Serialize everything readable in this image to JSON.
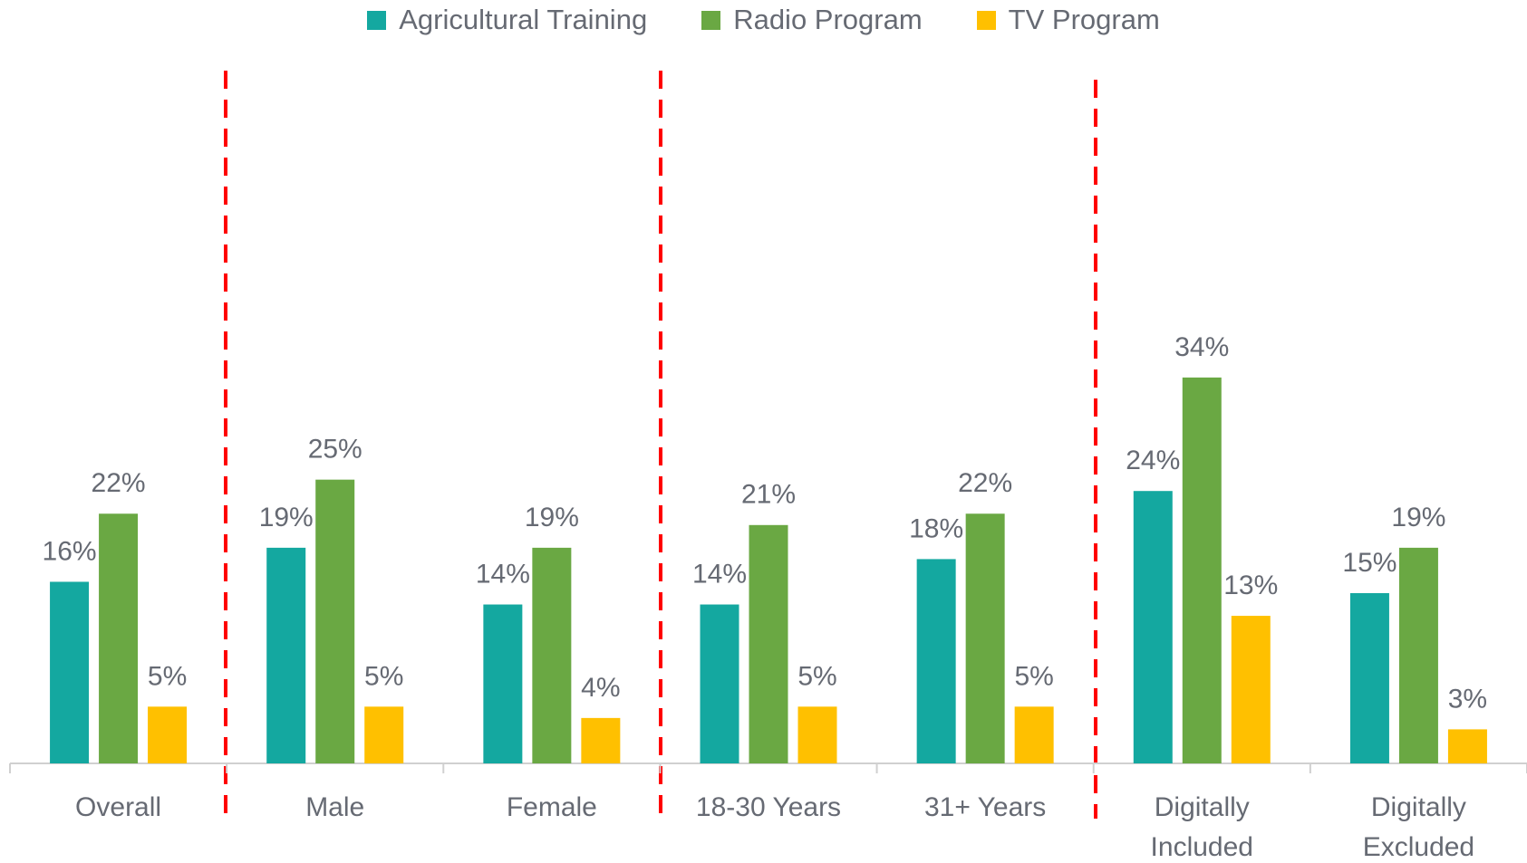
{
  "chart_data": {
    "type": "bar",
    "categories": [
      "Overall",
      "Male",
      "Female",
      "18-30 Years",
      "31+ Years",
      "Digitally\nIncluded",
      "Digitally\nExcluded"
    ],
    "series": [
      {
        "name": "Agricultural Training",
        "color": "#14a8a0",
        "values": [
          16,
          19,
          14,
          14,
          18,
          24,
          15
        ],
        "value_labels": [
          "16%",
          "19%",
          "14%",
          "14%",
          "18%",
          "24%",
          "15%"
        ]
      },
      {
        "name": "Radio Program",
        "color": "#6aa843",
        "values": [
          22,
          25,
          19,
          21,
          22,
          34,
          19
        ],
        "value_labels": [
          "22%",
          "25%",
          "19%",
          "21%",
          "22%",
          "34%",
          "19%"
        ]
      },
      {
        "name": "TV Program",
        "color": "#ffc000",
        "values": [
          5,
          5,
          4,
          5,
          5,
          13,
          3
        ],
        "value_labels": [
          "5%",
          "5%",
          "4%",
          "5%",
          "5%",
          "13%",
          "3%"
        ]
      }
    ],
    "ylim": [
      0,
      60
    ],
    "legend": "top"
  }
}
